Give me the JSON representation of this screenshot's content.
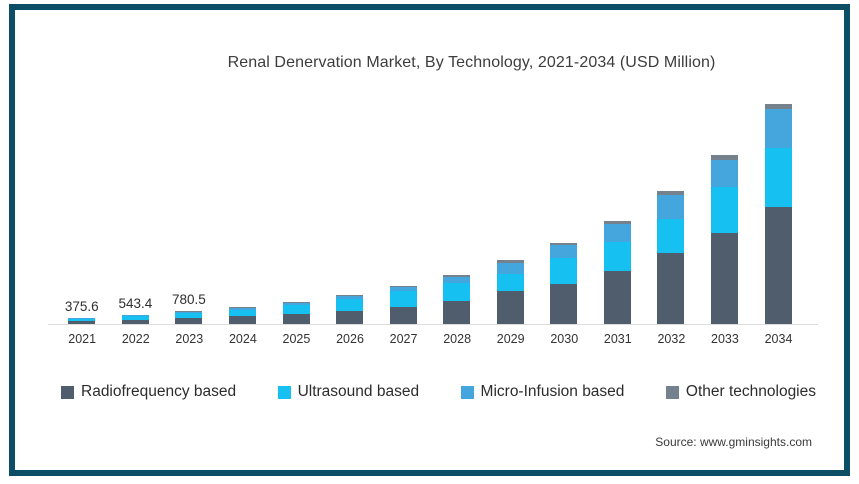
{
  "frame": {
    "border_color": "#0e4d66",
    "background": "#ffffff"
  },
  "title": "Renal Denervation Market, By Technology, 2021-2034 (USD Million)",
  "source": "Source: www.gminsights.com",
  "legend": [
    {
      "label": "Radiofrequency based",
      "color": "#4f5d6d"
    },
    {
      "label": "Ultrasound based",
      "color": "#16c0f1"
    },
    {
      "label": "Micro-Infusion based",
      "color": "#45a6de"
    },
    {
      "label": "Other technologies",
      "color": "#75828e"
    }
  ],
  "chart_data": {
    "type": "bar",
    "stacked": true,
    "title": "Renal Denervation Market, By Technology, 2021-2034 (USD Million)",
    "unit": "USD Million",
    "xlabel": "",
    "ylabel": "",
    "ylim": [
      0,
      14000
    ],
    "grid": false,
    "legend_position": "bottom",
    "categories": [
      "2021",
      "2022",
      "2023",
      "2024",
      "2025",
      "2026",
      "2027",
      "2028",
      "2029",
      "2030",
      "2031",
      "2032",
      "2033",
      "2034"
    ],
    "series": [
      {
        "name": "Radiofrequency based",
        "color": "#4f5d6d",
        "values": [
          180.3,
          260.8,
          370.7,
          477,
          598,
          792,
          1049,
          1416,
          2002,
          2450,
          3234,
          4272,
          5535,
          7050
        ]
      },
      {
        "name": "Ultrasound based",
        "color": "#16c0f1",
        "values": [
          150.2,
          217.4,
          312.2,
          396,
          545,
          722,
          935,
          1092,
          1040,
          1519,
          1742,
          2096,
          2768,
          3590
        ]
      },
      {
        "name": "Micro-Infusion based",
        "color": "#45a6de",
        "values": [
          33.8,
          48.9,
          74.2,
          112,
          147,
          193,
          228,
          354,
          654,
          784,
          1057,
          1410,
          1640,
          2360
        ]
      },
      {
        "name": "Other technologies",
        "color": "#75828e",
        "values": [
          11.3,
          16.3,
          23.4,
          30,
          40,
          53,
          68,
          88,
          154,
          147,
          187,
          282,
          307,
          300
        ]
      }
    ],
    "totals": [
      375.6,
      543.4,
      780.5,
      1015,
      1330,
      1760,
      2280,
      2950,
      3850,
      4900,
      6220,
      8060,
      10250,
      13300
    ],
    "data_labels": [
      "375.6",
      "543.4",
      "780.5",
      "",
      "",
      "",
      "",
      "",
      "",
      "",
      "",
      "",
      "",
      ""
    ]
  }
}
